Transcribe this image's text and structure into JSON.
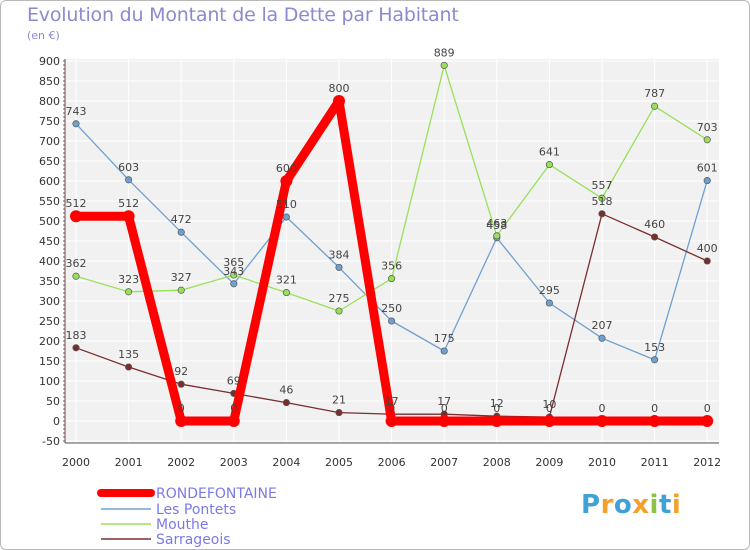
{
  "header": {
    "title": "Evolution du Montant de la Dette par Habitant",
    "subtitle": "(en €)"
  },
  "logo": {
    "chars": [
      "P",
      "r",
      "o",
      "x",
      "i",
      "t",
      "i"
    ],
    "colors": [
      "#3fa1d6",
      "#f2a12c",
      "#3fa1d6",
      "#f2a12c",
      "#8bc53f",
      "#3fa1d6",
      "#f2a12c"
    ]
  },
  "chart_data": {
    "type": "line",
    "title": "Evolution du Montant de la Dette par Habitant",
    "ylabel": "(en €)",
    "xlabel": "",
    "ylim": [
      -50,
      900
    ],
    "ytick_step": 50,
    "grid": true,
    "legend_position": "bottom-left",
    "categories": [
      "2000",
      "2001",
      "2002",
      "2003",
      "2004",
      "2005",
      "2006",
      "2007",
      "2008",
      "2009",
      "2010",
      "2011",
      "2012"
    ],
    "series": [
      {
        "name": "RONDEFONTAINE",
        "color": "#ff0000",
        "values": [
          512,
          512,
          0,
          0,
          600,
          800,
          0,
          0,
          0,
          0,
          0,
          0,
          0
        ],
        "labels": [
          "512",
          "512",
          "0",
          "0",
          "600",
          "800",
          "0",
          "0",
          "0",
          "0",
          "0",
          "0",
          "0"
        ]
      },
      {
        "name": "Les Pontets",
        "color": "#6fa0cf",
        "values": [
          743,
          603,
          472,
          343,
          510,
          384,
          250,
          175,
          458,
          295,
          207,
          153,
          601
        ],
        "labels": [
          "743",
          "603",
          "472",
          "343",
          "510",
          "384",
          "250",
          "175",
          "458",
          "295",
          "207",
          "153",
          "601"
        ]
      },
      {
        "name": "Mouthe",
        "color": "#99e05a",
        "values": [
          362,
          323,
          327,
          365,
          321,
          275,
          356,
          889,
          463,
          641,
          557,
          787,
          703
        ],
        "labels": [
          "362",
          "323",
          "327",
          "365",
          "321",
          "275",
          "356",
          "889",
          "463",
          "641",
          "557",
          "787",
          "703"
        ]
      },
      {
        "name": "Sarrageois",
        "color": "#7a2e2e",
        "values": [
          183,
          135,
          92,
          69,
          46,
          21,
          17,
          17,
          12,
          10,
          518,
          460,
          400
        ],
        "labels": [
          "183",
          "135",
          "92",
          "69",
          "46",
          "21",
          "17",
          "17",
          "12",
          "10",
          "518",
          "460",
          "400"
        ]
      }
    ]
  }
}
